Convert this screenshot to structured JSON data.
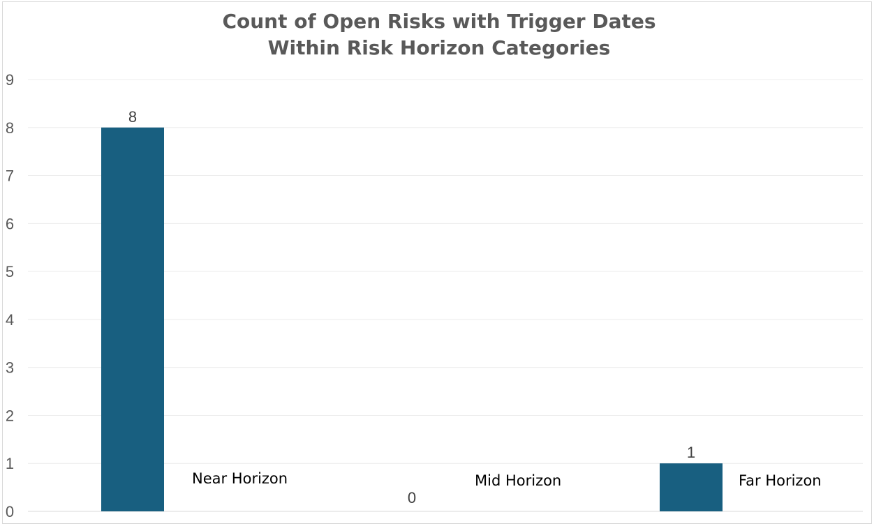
{
  "chart_data": {
    "type": "bar",
    "title_lines": [
      "Count of Open Risks with Trigger Dates",
      "Within Risk Horizon Categories"
    ],
    "categories": [
      "Near Horizon",
      "Mid Horizon",
      "Far Horizon"
    ],
    "values": [
      8,
      0,
      1
    ],
    "data_labels": [
      "8",
      "0",
      "1"
    ],
    "ylim": [
      0,
      9
    ],
    "yticks": [
      0,
      1,
      2,
      3,
      4,
      5,
      6,
      7,
      8,
      9
    ],
    "grid": true,
    "legend": "none",
    "bar_color": "#185f80",
    "gridline_color": "#ececec",
    "xlabel": "",
    "ylabel": ""
  }
}
